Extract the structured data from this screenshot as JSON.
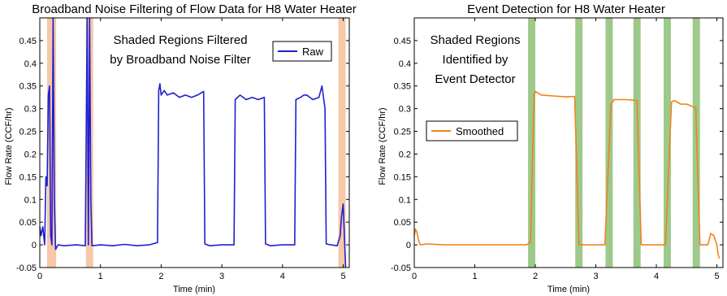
{
  "chart_data": [
    {
      "type": "line",
      "title": "Broadband Noise Filtering of Flow Data for H8 Water Heater",
      "xlabel": "Time (min)",
      "ylabel": "Flow Rate (CCF/hr)",
      "xlim": [
        0,
        5.1
      ],
      "ylim": [
        -0.05,
        0.5
      ],
      "xticks": [
        "0",
        "1",
        "2",
        "3",
        "4",
        "5"
      ],
      "yticks": [
        "-0.05",
        "0",
        "0.05",
        "0.1",
        "0.15",
        "0.2",
        "0.25",
        "0.3",
        "0.35",
        "0.4",
        "0.45"
      ],
      "annotation": [
        "Shaded Regions Filtered",
        "by Broadband Noise Filter"
      ],
      "legend": {
        "position": "top-right",
        "entries": [
          "Raw"
        ]
      },
      "series": [
        {
          "name": "Raw",
          "color": "#1f1fd2",
          "points": [
            [
              0,
              0.04
            ],
            [
              0.02,
              0.02
            ],
            [
              0.05,
              0.04
            ],
            [
              0.08,
              0.0
            ],
            [
              0.1,
              0.15
            ],
            [
              0.12,
              0.13
            ],
            [
              0.14,
              0.33
            ],
            [
              0.16,
              0.35
            ],
            [
              0.18,
              0.02
            ],
            [
              0.2,
              0.0
            ],
            [
              0.22,
              0.5
            ],
            [
              0.24,
              0.1
            ],
            [
              0.26,
              -0.01
            ],
            [
              0.3,
              0.0
            ],
            [
              0.4,
              -0.002
            ],
            [
              0.6,
              0.0
            ],
            [
              0.75,
              -0.002
            ],
            [
              0.78,
              0.5
            ],
            [
              0.8,
              0.0
            ],
            [
              0.82,
              0.5
            ],
            [
              0.84,
              0.1
            ],
            [
              0.86,
              -0.002
            ],
            [
              1.0,
              0.0
            ],
            [
              1.2,
              -0.002
            ],
            [
              1.4,
              0.001
            ],
            [
              1.6,
              -0.002
            ],
            [
              1.8,
              0.0
            ],
            [
              1.94,
              0.005
            ],
            [
              1.96,
              0.34
            ],
            [
              1.98,
              0.355
            ],
            [
              2.0,
              0.33
            ],
            [
              2.05,
              0.34
            ],
            [
              2.1,
              0.33
            ],
            [
              2.2,
              0.335
            ],
            [
              2.3,
              0.325
            ],
            [
              2.4,
              0.33
            ],
            [
              2.5,
              0.325
            ],
            [
              2.6,
              0.33
            ],
            [
              2.7,
              0.338
            ],
            [
              2.72,
              0.002
            ],
            [
              2.8,
              -0.002
            ],
            [
              3.0,
              0.0
            ],
            [
              3.2,
              0.0
            ],
            [
              3.22,
              0.32
            ],
            [
              3.3,
              0.33
            ],
            [
              3.4,
              0.32
            ],
            [
              3.5,
              0.325
            ],
            [
              3.6,
              0.32
            ],
            [
              3.7,
              0.325
            ],
            [
              3.72,
              0.002
            ],
            [
              3.8,
              -0.002
            ],
            [
              4.0,
              0.0
            ],
            [
              4.2,
              0.0
            ],
            [
              4.22,
              0.32
            ],
            [
              4.3,
              0.325
            ],
            [
              4.35,
              0.33
            ],
            [
              4.4,
              0.33
            ],
            [
              4.5,
              0.32
            ],
            [
              4.6,
              0.325
            ],
            [
              4.65,
              0.35
            ],
            [
              4.7,
              0.3
            ],
            [
              4.72,
              0.002
            ],
            [
              4.8,
              0.0
            ],
            [
              4.9,
              -0.002
            ],
            [
              4.95,
              0.02
            ],
            [
              4.97,
              0.06
            ],
            [
              5.0,
              0.09
            ],
            [
              5.02,
              0.02
            ],
            [
              5.04,
              -0.05
            ]
          ]
        }
      ],
      "shaded_regions": [
        [
          0.12,
          0.27
        ],
        [
          0.76,
          0.88
        ],
        [
          4.92,
          5.04
        ]
      ],
      "shade_color": "#f6c8a8"
    },
    {
      "type": "line",
      "title": "Event Detection for H8 Water Heater",
      "xlabel": "Time (min)",
      "ylabel": "Flow Rate (CCF/hr)",
      "xlim": [
        0,
        5.1
      ],
      "ylim": [
        -0.05,
        0.5
      ],
      "xticks": [
        "0",
        "1",
        "2",
        "3",
        "4",
        "5"
      ],
      "yticks": [
        "-0.05",
        "0",
        "0.05",
        "0.1",
        "0.15",
        "0.2",
        "0.25",
        "0.3",
        "0.35",
        "0.4",
        "0.45"
      ],
      "annotation": [
        "Shaded Regions",
        "Identified by",
        "Event Detector"
      ],
      "legend": {
        "position": "middle-left",
        "entries": [
          "Smoothed"
        ]
      },
      "series": [
        {
          "name": "Smoothed",
          "color": "#f0821e",
          "points": [
            [
              0,
              0.02
            ],
            [
              0.02,
              0.035
            ],
            [
              0.05,
              0.025
            ],
            [
              0.07,
              0.01
            ],
            [
              0.1,
              0.0
            ],
            [
              0.2,
              0.002
            ],
            [
              0.5,
              0.0
            ],
            [
              1.0,
              0.0
            ],
            [
              1.5,
              0.0
            ],
            [
              1.85,
              0.0
            ],
            [
              1.92,
              0.005
            ],
            [
              1.98,
              0.33
            ],
            [
              2.0,
              0.338
            ],
            [
              2.1,
              0.33
            ],
            [
              2.3,
              0.328
            ],
            [
              2.5,
              0.326
            ],
            [
              2.65,
              0.327
            ],
            [
              2.72,
              0.0
            ],
            [
              3.0,
              0.0
            ],
            [
              3.15,
              0.0
            ],
            [
              3.25,
              0.31
            ],
            [
              3.3,
              0.32
            ],
            [
              3.5,
              0.32
            ],
            [
              3.68,
              0.318
            ],
            [
              3.75,
              0.0
            ],
            [
              4.0,
              0.0
            ],
            [
              4.15,
              0.0
            ],
            [
              4.25,
              0.315
            ],
            [
              4.3,
              0.318
            ],
            [
              4.4,
              0.31
            ],
            [
              4.5,
              0.31
            ],
            [
              4.65,
              0.302
            ],
            [
              4.72,
              0.0
            ],
            [
              4.85,
              0.0
            ],
            [
              4.9,
              0.025
            ],
            [
              4.95,
              0.02
            ],
            [
              5.0,
              0.0
            ],
            [
              5.02,
              -0.02
            ],
            [
              5.04,
              -0.03
            ]
          ]
        }
      ],
      "shaded_regions": [
        [
          1.88,
          2.0
        ],
        [
          2.66,
          2.78
        ],
        [
          3.16,
          3.28
        ],
        [
          3.62,
          3.74
        ],
        [
          4.12,
          4.24
        ],
        [
          4.6,
          4.72
        ]
      ],
      "shade_color": "#9dc98a"
    }
  ]
}
